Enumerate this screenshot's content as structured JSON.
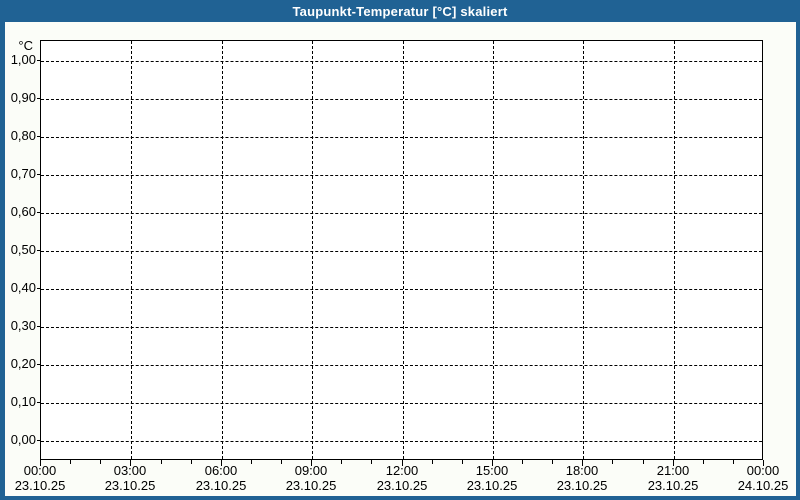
{
  "window": {
    "title": "Taupunkt-Temperatur [°C] skaliert"
  },
  "theme": {
    "titlebar_color": "#206294",
    "border_color": "#206294",
    "content_background": "#fbfdf8",
    "plot_background": "#ffffff",
    "grid_color": "#000000",
    "text_color": "#000000",
    "title_text_color": "#ffffff"
  },
  "chart_data": {
    "type": "line",
    "title": "Taupunkt-Temperatur [°C] skaliert",
    "ylabel": "°C",
    "xlabel": "",
    "grid": "dashed",
    "legend_position": "none",
    "series": [],
    "y_axis": {
      "unit_label": "°C",
      "tick_labels": [
        "1,00",
        "0,90",
        "0,80",
        "0,70",
        "0,60",
        "0,50",
        "0,40",
        "0,30",
        "0,20",
        "0,10",
        "0,00"
      ],
      "tick_values": [
        1.0,
        0.9,
        0.8,
        0.7,
        0.6,
        0.5,
        0.4,
        0.3,
        0.2,
        0.1,
        0.0
      ],
      "ylim": [
        -0.05,
        1.05
      ]
    },
    "x_axis": {
      "major_tick_interval_hours": 3,
      "minor_tick_interval_hours": 1,
      "range_hours": 24,
      "major_ticks": [
        {
          "time": "00:00",
          "date": "23.10.25"
        },
        {
          "time": "03:00",
          "date": "23.10.25"
        },
        {
          "time": "06:00",
          "date": "23.10.25"
        },
        {
          "time": "09:00",
          "date": "23.10.25"
        },
        {
          "time": "12:00",
          "date": "23.10.25"
        },
        {
          "time": "15:00",
          "date": "23.10.25"
        },
        {
          "time": "18:00",
          "date": "23.10.25"
        },
        {
          "time": "21:00",
          "date": "23.10.25"
        },
        {
          "time": "00:00",
          "date": "24.10.25"
        }
      ]
    }
  }
}
